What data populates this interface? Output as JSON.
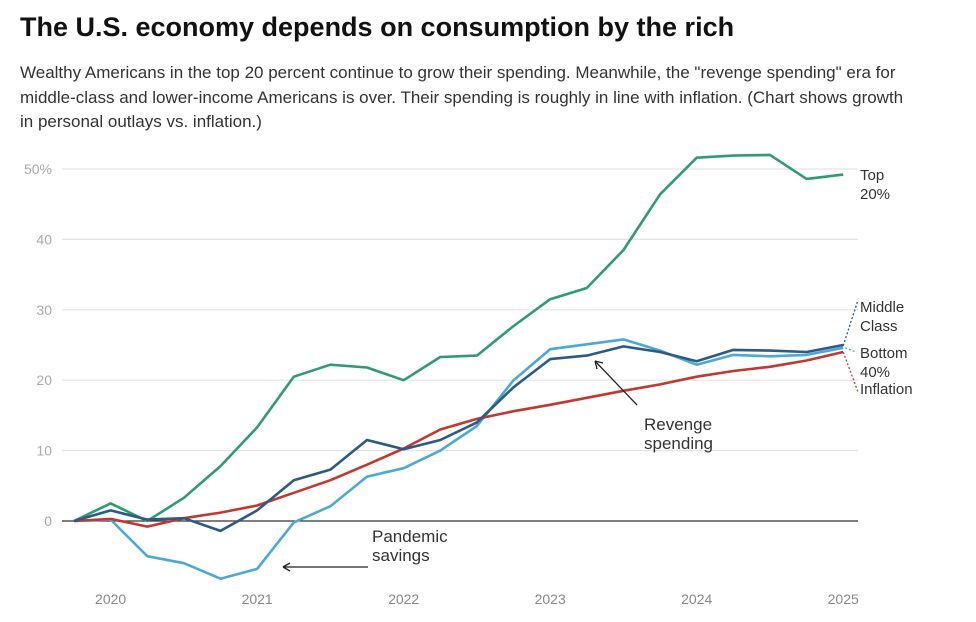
{
  "title": "The U.S. economy depends on consumption by the rich",
  "subtitle": "Wealthy Americans in the top 20 percent continue to grow their spending. Meanwhile, the \"revenge spending\" era for middle-class and lower-income Americans is over. Their spending is roughly in line with inflation. (Chart shows growth in personal outlays vs. inflation.)",
  "chart_data": {
    "type": "line",
    "ylim": [
      -10,
      50
    ],
    "yticks": [
      0,
      10,
      20,
      30,
      40,
      50
    ],
    "ytick_labels": [
      "0",
      "10",
      "20",
      "30",
      "40",
      "50%"
    ],
    "xtick_labels": [
      "2020",
      "2021",
      "2022",
      "2023",
      "2024",
      "2025"
    ],
    "x": [
      "2019 Q4",
      "2020 Q1",
      "2020 Q2",
      "2020 Q3",
      "2020 Q4",
      "2021 Q1",
      "2021 Q2",
      "2021 Q3",
      "2021 Q4",
      "2022 Q1",
      "2022 Q2",
      "2022 Q3",
      "2022 Q4",
      "2023 Q1",
      "2023 Q2",
      "2023 Q3",
      "2023 Q4",
      "2024 Q1",
      "2024 Q2",
      "2024 Q3",
      "2024 Q4",
      "2025 Q1"
    ],
    "grid": true,
    "series": [
      {
        "name": "Top 20%",
        "color": "#2f9a74",
        "values": [
          0,
          2.5,
          0,
          3.3,
          7.8,
          13.3,
          20.5,
          22.2,
          21.8,
          20,
          23.3,
          23.5,
          27.7,
          31.5,
          33.1,
          38.5,
          46.4,
          51.6,
          51.9,
          52,
          48.6,
          49.2
        ]
      },
      {
        "name": "Bottom 40%",
        "color": "#4ba9d3",
        "values": [
          0,
          0.2,
          -5,
          -6,
          -8.2,
          -6.8,
          -0.2,
          2.1,
          6.3,
          7.5,
          10,
          13.5,
          20,
          24.4,
          25.1,
          25.8,
          24.2,
          22.2,
          23.6,
          23.4,
          23.6,
          24.6
        ]
      },
      {
        "name": "Inflation",
        "color": "#c0392f",
        "values": [
          0,
          0.3,
          -0.8,
          0.4,
          1.2,
          2.2,
          4,
          5.8,
          8,
          10.3,
          13,
          14.5,
          15.6,
          16.5,
          17.5,
          18.5,
          19.4,
          20.5,
          21.3,
          21.9,
          22.8,
          24
        ]
      },
      {
        "name": "Middle Class",
        "color": "#2a5b82",
        "values": [
          0,
          1.5,
          0.2,
          0.4,
          -1.4,
          1.5,
          5.8,
          7.3,
          11.5,
          10.2,
          11.5,
          14,
          19,
          23,
          23.5,
          24.8,
          24,
          22.7,
          24.3,
          24.2,
          24,
          25
        ]
      }
    ],
    "series_labels": {
      "top20": [
        "Top",
        "20%"
      ],
      "middle": [
        "Middle",
        "Class"
      ],
      "bottom": [
        "Bottom",
        "40%"
      ],
      "inflation": [
        "Inflation"
      ]
    },
    "annotations": {
      "revenge": [
        "Revenge",
        "spending"
      ],
      "pandemic": [
        "Pandemic",
        "savings"
      ]
    }
  }
}
